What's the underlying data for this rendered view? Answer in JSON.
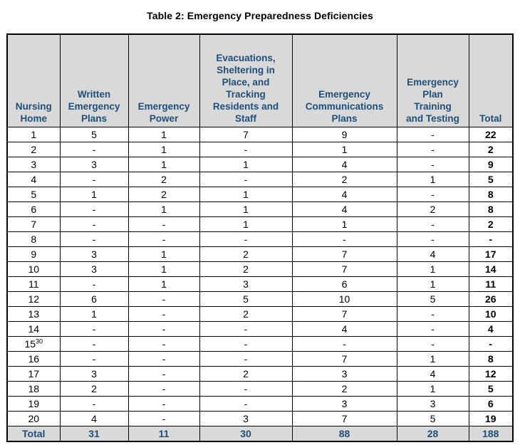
{
  "page": {
    "title": "Table 2: Emergency Preparedness Deficiencies"
  },
  "table": {
    "columns": [
      {
        "id": "nursing-home",
        "label": "Nursing\nHome"
      },
      {
        "id": "written-emergency-plans",
        "label": "Written\nEmergency\nPlans"
      },
      {
        "id": "emergency-power",
        "label": "Emergency\nPower"
      },
      {
        "id": "evacuations-sheltering-tracking",
        "label": "Evacuations,\nSheltering in\nPlace, and\nTracking\nResidents and\nStaff"
      },
      {
        "id": "emergency-communications-plans",
        "label": "Emergency\nCommunications\nPlans"
      },
      {
        "id": "emergency-plan-training-testing",
        "label": "Emergency\nPlan\nTraining\nand Testing"
      },
      {
        "id": "total",
        "label": "Total"
      }
    ],
    "rows": [
      {
        "home": "1",
        "home_sup": "",
        "values": [
          "5",
          "1",
          "7",
          "9",
          "-"
        ],
        "total": "22"
      },
      {
        "home": "2",
        "home_sup": "",
        "values": [
          "-",
          "1",
          "-",
          "1",
          "-"
        ],
        "total": "2"
      },
      {
        "home": "3",
        "home_sup": "",
        "values": [
          "3",
          "1",
          "1",
          "4",
          "-"
        ],
        "total": "9"
      },
      {
        "home": "4",
        "home_sup": "",
        "values": [
          "-",
          "2",
          "-",
          "2",
          "1"
        ],
        "total": "5"
      },
      {
        "home": "5",
        "home_sup": "",
        "values": [
          "1",
          "2",
          "1",
          "4",
          "-"
        ],
        "total": "8"
      },
      {
        "home": "6",
        "home_sup": "",
        "values": [
          "-",
          "1",
          "1",
          "4",
          "2"
        ],
        "total": "8"
      },
      {
        "home": "7",
        "home_sup": "",
        "values": [
          "-",
          "-",
          "1",
          "1",
          "-"
        ],
        "total": "2"
      },
      {
        "home": "8",
        "home_sup": "",
        "values": [
          "-",
          "-",
          "-",
          "-",
          "-"
        ],
        "total": "-"
      },
      {
        "home": "9",
        "home_sup": "",
        "values": [
          "3",
          "1",
          "2",
          "7",
          "4"
        ],
        "total": "17"
      },
      {
        "home": "10",
        "home_sup": "",
        "values": [
          "3",
          "1",
          "2",
          "7",
          "1"
        ],
        "total": "14"
      },
      {
        "home": "11",
        "home_sup": "",
        "values": [
          "-",
          "1",
          "3",
          "6",
          "1"
        ],
        "total": "11"
      },
      {
        "home": "12",
        "home_sup": "",
        "values": [
          "6",
          "-",
          "5",
          "10",
          "5"
        ],
        "total": "26"
      },
      {
        "home": "13",
        "home_sup": "",
        "values": [
          "1",
          "-",
          "2",
          "7",
          "-"
        ],
        "total": "10"
      },
      {
        "home": "14",
        "home_sup": "",
        "values": [
          "-",
          "-",
          "-",
          "4",
          "-"
        ],
        "total": "4"
      },
      {
        "home": "15",
        "home_sup": "30",
        "values": [
          "-",
          "-",
          "-",
          "-",
          "-"
        ],
        "total": "-"
      },
      {
        "home": "16",
        "home_sup": "",
        "values": [
          "-",
          "-",
          "-",
          "7",
          "1"
        ],
        "total": "8"
      },
      {
        "home": "17",
        "home_sup": "",
        "values": [
          "3",
          "-",
          "2",
          "3",
          "4"
        ],
        "total": "12"
      },
      {
        "home": "18",
        "home_sup": "",
        "values": [
          "2",
          "-",
          "-",
          "2",
          "1"
        ],
        "total": "5"
      },
      {
        "home": "19",
        "home_sup": "",
        "values": [
          "-",
          "-",
          "-",
          "3",
          "3"
        ],
        "total": "6"
      },
      {
        "home": "20",
        "home_sup": "",
        "values": [
          "4",
          "-",
          "3",
          "7",
          "5"
        ],
        "total": "19"
      }
    ],
    "total_row": {
      "label": "Total",
      "values": [
        "31",
        "11",
        "30",
        "88",
        "28"
      ],
      "total": "188"
    }
  },
  "colors": {
    "header_text": "#1F4E79",
    "header_bg": "#D9D9D9",
    "body_text": "#000000",
    "border": "#000000"
  }
}
